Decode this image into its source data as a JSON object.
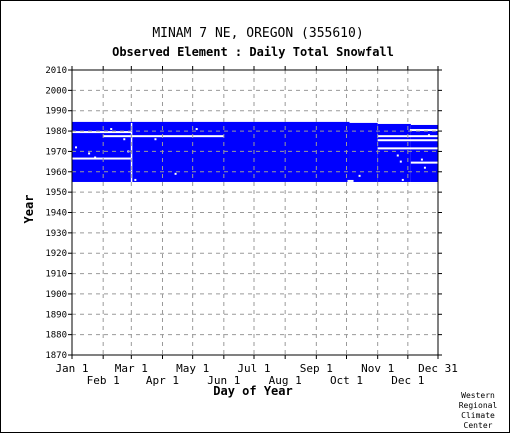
{
  "chart_data": {
    "type": "heatmap",
    "title": "MINAM 7 NE, OREGON   (355610)",
    "subtitle": "Observed Element : Daily Total Snowfall",
    "xlabel": "Day of Year",
    "ylabel": "Year",
    "x_ticks_top_row": [
      "Jan 1",
      "Mar 1",
      "May 1",
      "Jul 1",
      "Sep 1",
      "Nov 1",
      "Dec 31"
    ],
    "x_ticks_bottom_row": [
      "Feb 1",
      "Apr 1",
      "Jun 1",
      "Aug 1",
      "Oct 1",
      "Dec 1"
    ],
    "x_tick_days": {
      "Jan 1": 1,
      "Feb 1": 32,
      "Mar 1": 60,
      "Apr 1": 91,
      "May 1": 121,
      "Jun 1": 152,
      "Jul 1": 182,
      "Aug 1": 213,
      "Sep 1": 244,
      "Oct 1": 274,
      "Nov 1": 305,
      "Dec 1": 335,
      "Dec 31": 365
    },
    "xlim": [
      1,
      365
    ],
    "ylim": [
      1870,
      2010
    ],
    "y_ticks": [
      1870,
      1880,
      1890,
      1900,
      1910,
      1920,
      1930,
      1940,
      1950,
      1960,
      1970,
      1980,
      1990,
      2000,
      2010
    ],
    "grid": true,
    "fill_color": "#0000ff",
    "coverage_blocks": [
      {
        "day_start": 1,
        "day_end": 277,
        "year_start": 1955,
        "year_end": 1984.5
      },
      {
        "day_start": 277,
        "day_end": 305,
        "year_start": 1955,
        "year_end": 1984
      },
      {
        "day_start": 305,
        "day_end": 338,
        "year_start": 1954,
        "year_end": 1983.5
      },
      {
        "day_start": 338,
        "day_end": 365,
        "year_start": 1954,
        "year_end": 1983
      }
    ],
    "missing_rows": [
      {
        "year": 1979.5,
        "day_start": 1,
        "day_end": 60
      },
      {
        "year": 1977.5,
        "day_start": 32,
        "day_end": 152
      },
      {
        "year": 1966.5,
        "day_start": 1,
        "day_end": 60
      },
      {
        "year": 1955.5,
        "day_start": 275,
        "day_end": 281
      },
      {
        "year": 1977.5,
        "day_start": 305,
        "day_end": 365
      },
      {
        "year": 1975.5,
        "day_start": 305,
        "day_end": 365
      },
      {
        "year": 1971.5,
        "day_start": 305,
        "day_end": 365
      },
      {
        "year": 1980.5,
        "day_start": 337,
        "day_end": 365
      },
      {
        "year": 1964.5,
        "day_start": 338,
        "day_end": 365
      },
      {
        "year": 1954.5,
        "day_start": 305,
        "day_end": 365
      }
    ],
    "missing_vertical": [
      {
        "day": 60,
        "year_start": 1955,
        "year_end": 1984
      }
    ],
    "missing_points": [
      {
        "day": 5,
        "year": 1972
      },
      {
        "day": 18,
        "year": 1969
      },
      {
        "day": 24,
        "year": 1967
      },
      {
        "day": 40,
        "year": 1981
      },
      {
        "day": 53,
        "year": 1976
      },
      {
        "day": 57,
        "year": 1970
      },
      {
        "day": 64,
        "year": 1956
      },
      {
        "day": 84,
        "year": 1976
      },
      {
        "day": 104,
        "year": 1959
      },
      {
        "day": 125,
        "year": 1981
      },
      {
        "day": 287,
        "year": 1958
      },
      {
        "day": 325,
        "year": 1968
      },
      {
        "day": 328,
        "year": 1965
      },
      {
        "day": 330,
        "year": 1956
      },
      {
        "day": 349,
        "year": 1966
      },
      {
        "day": 352,
        "year": 1962
      },
      {
        "day": 356,
        "year": 1978
      }
    ]
  },
  "credit": [
    "Western",
    "Regional",
    "Climate",
    "Center"
  ]
}
